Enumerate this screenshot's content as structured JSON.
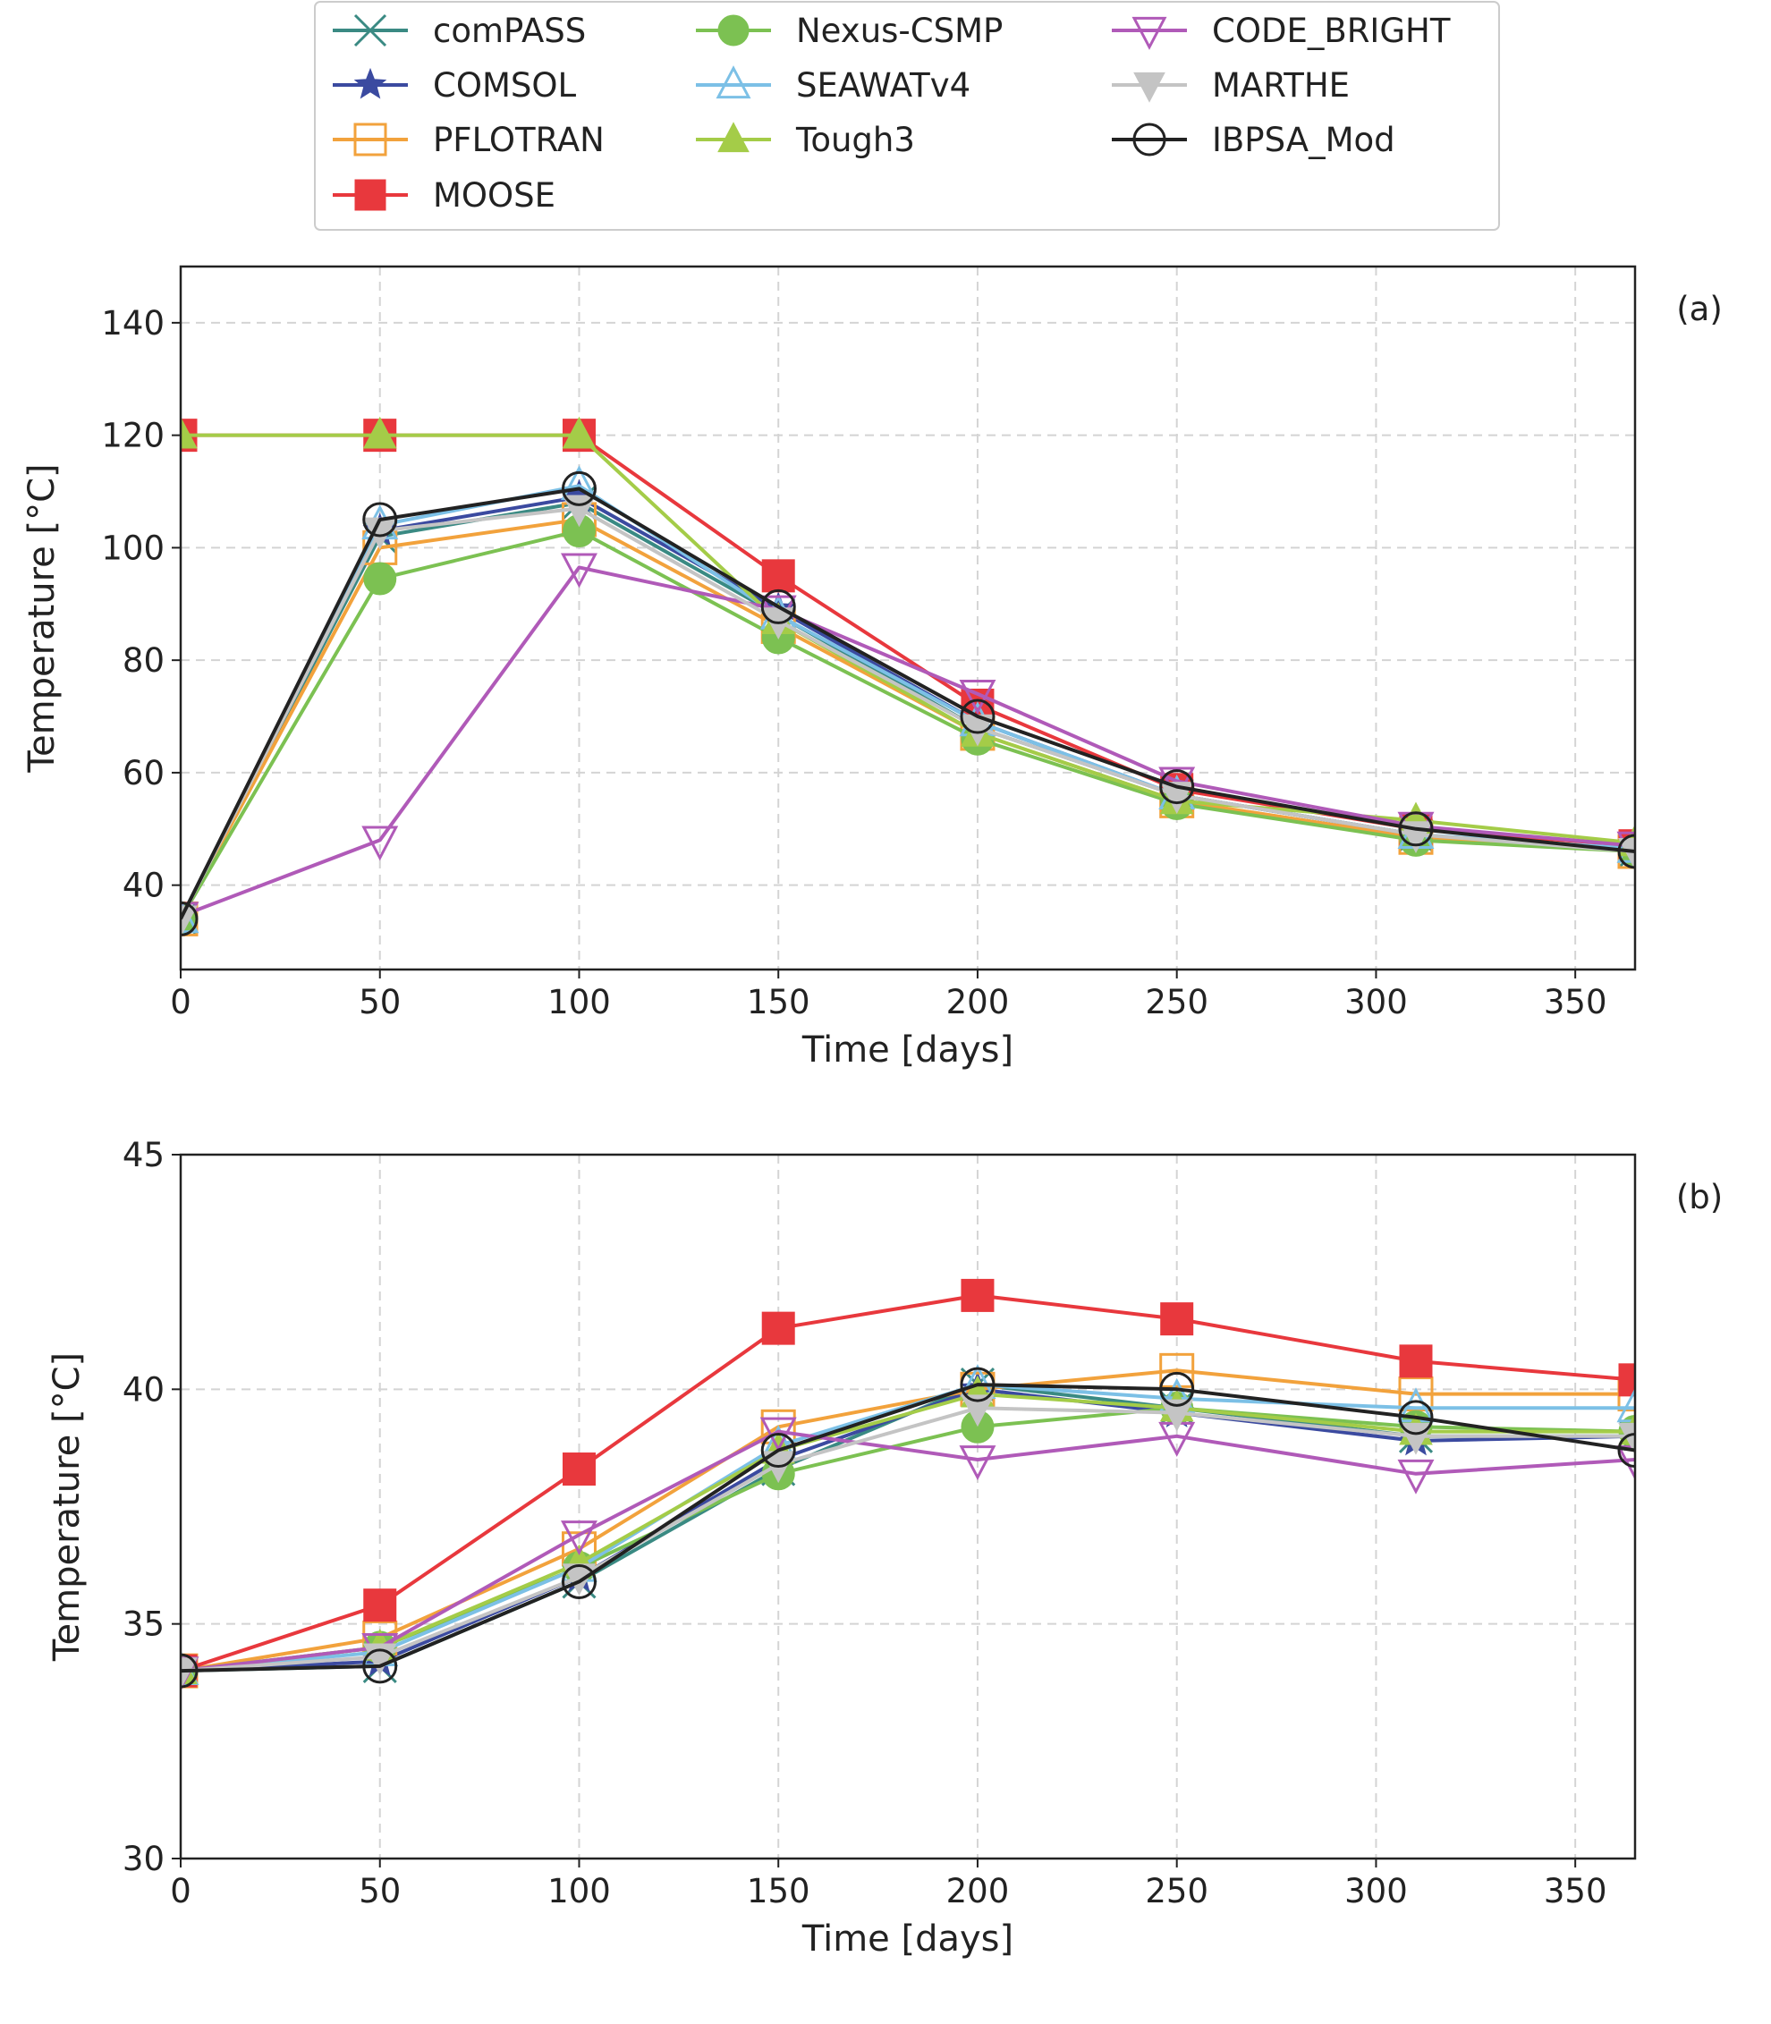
{
  "legend": {
    "entries": [
      {
        "name": "comPASS",
        "color": "#3a8a83",
        "marker": "x-cross"
      },
      {
        "name": "COMSOL",
        "color": "#3b4aa0",
        "marker": "star"
      },
      {
        "name": "PFLOTRAN",
        "color": "#f2a23c",
        "marker": "square-open"
      },
      {
        "name": "MOOSE",
        "color": "#e8383d",
        "marker": "square-filled"
      },
      {
        "name": "Nexus-CSMP",
        "color": "#7cc152",
        "marker": "circle-filled"
      },
      {
        "name": "SEAWATv4",
        "color": "#7cc0e6",
        "marker": "triangle-up-open"
      },
      {
        "name": "Tough3",
        "color": "#a4cc48",
        "marker": "triangle-up-filled"
      },
      {
        "name": "CODE_BRIGHT",
        "color": "#b05ab8",
        "marker": "triangle-down-open"
      },
      {
        "name": "MARTHE",
        "color": "#c4c4c4",
        "marker": "triangle-down-filled"
      },
      {
        "name": "IBPSA_Mod",
        "color": "#222222",
        "marker": "circle-open"
      }
    ]
  },
  "chart_data": [
    {
      "type": "line",
      "panel_label": "(a)",
      "xlabel": "Time [days]",
      "ylabel": "Temperature [$^\\circ$C]",
      "ylabel_text": "Temperature [°C]",
      "xlim": [
        0,
        365
      ],
      "ylim": [
        25,
        150
      ],
      "xticks": [
        0,
        50,
        100,
        150,
        200,
        250,
        300,
        350
      ],
      "yticks": [
        40,
        60,
        80,
        100,
        120,
        140
      ],
      "grid": true,
      "x": [
        0,
        50,
        100,
        150,
        200,
        250,
        310,
        365
      ],
      "series": [
        {
          "name": "comPASS",
          "values": [
            34,
            102,
            108,
            88,
            68,
            56,
            49,
            46
          ]
        },
        {
          "name": "COMSOL",
          "values": [
            34,
            103,
            109,
            89,
            69,
            56,
            49,
            46
          ]
        },
        {
          "name": "PFLOTRAN",
          "values": [
            34,
            100,
            105,
            86,
            67,
            55,
            48.5,
            46
          ]
        },
        {
          "name": "MOOSE",
          "values": [
            120,
            120,
            120,
            95,
            72,
            57,
            50,
            47
          ]
        },
        {
          "name": "Nexus-CSMP",
          "values": [
            34,
            94.5,
            103,
            84,
            66,
            54.5,
            48,
            46
          ]
        },
        {
          "name": "SEAWATv4",
          "values": [
            34,
            104,
            111,
            88,
            69,
            56,
            49,
            46.5
          ]
        },
        {
          "name": "Tough3",
          "values": [
            120,
            120,
            120,
            87,
            67,
            55,
            51.5,
            47.5
          ]
        },
        {
          "name": "CODE_BRIGHT",
          "values": [
            34.5,
            48,
            96.5,
            89,
            74,
            58.5,
            50.5,
            47
          ]
        },
        {
          "name": "MARTHE",
          "values": [
            34,
            103,
            107,
            87,
            68,
            56,
            49,
            46
          ]
        },
        {
          "name": "IBPSA_Mod",
          "values": [
            34,
            105,
            110.5,
            89.5,
            70,
            57.5,
            50,
            46
          ]
        }
      ]
    },
    {
      "type": "line",
      "panel_label": "(b)",
      "xlabel": "Time [days]",
      "ylabel": "Temperature [$^\\circ$C]",
      "ylabel_text": "Temperature [°C]",
      "xlim": [
        0,
        365
      ],
      "ylim": [
        30,
        45
      ],
      "xticks": [
        0,
        50,
        100,
        150,
        200,
        250,
        300,
        350
      ],
      "yticks": [
        30,
        35,
        40,
        45
      ],
      "grid": true,
      "x": [
        0,
        50,
        100,
        150,
        200,
        250,
        310,
        365
      ],
      "series": [
        {
          "name": "comPASS",
          "values": [
            34,
            34.1,
            35.9,
            38.3,
            40.1,
            39.6,
            39.0,
            39.0
          ]
        },
        {
          "name": "COMSOL",
          "values": [
            34,
            34.2,
            36.0,
            38.5,
            40.0,
            39.5,
            38.9,
            39.0
          ]
        },
        {
          "name": "PFLOTRAN",
          "values": [
            34,
            34.7,
            36.6,
            39.2,
            40.0,
            40.4,
            39.9,
            39.9
          ]
        },
        {
          "name": "MOOSE",
          "values": [
            34,
            35.4,
            38.3,
            41.3,
            42.0,
            41.5,
            40.6,
            40.2
          ]
        },
        {
          "name": "Nexus-CSMP",
          "values": [
            34,
            34.5,
            36.2,
            38.2,
            39.2,
            39.6,
            39.2,
            39.1
          ]
        },
        {
          "name": "SEAWATv4",
          "values": [
            34,
            34.4,
            36.2,
            38.8,
            40.1,
            39.8,
            39.6,
            39.6
          ]
        },
        {
          "name": "Tough3",
          "values": [
            34,
            34.5,
            36.3,
            38.7,
            39.9,
            39.6,
            39.1,
            39.1
          ]
        },
        {
          "name": "CODE_BRIGHT",
          "values": [
            34,
            34.5,
            36.9,
            39.1,
            38.5,
            39.0,
            38.2,
            38.5
          ]
        },
        {
          "name": "MARTHE",
          "values": [
            34,
            34.3,
            36.0,
            38.4,
            39.6,
            39.5,
            39.0,
            39.0
          ]
        },
        {
          "name": "IBPSA_Mod",
          "values": [
            34,
            34.1,
            35.9,
            38.7,
            40.1,
            40.0,
            39.4,
            38.7
          ]
        }
      ]
    }
  ]
}
